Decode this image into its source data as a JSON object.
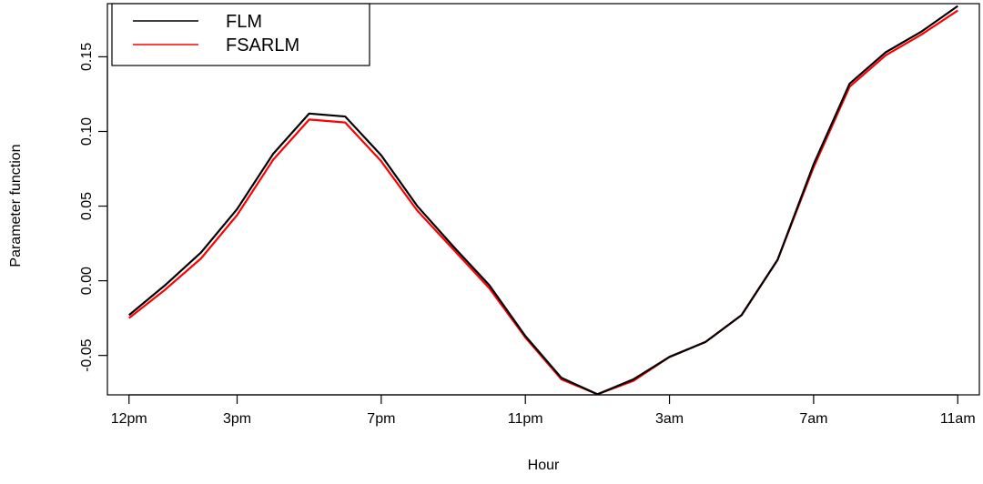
{
  "chart_data": {
    "type": "line",
    "title": "",
    "xlabel": "Hour",
    "ylabel": "Parameter function",
    "x": [
      12,
      13,
      14,
      15,
      16,
      17,
      18,
      19,
      20,
      21,
      22,
      23,
      24,
      25,
      26,
      27,
      28,
      29,
      30,
      31,
      32,
      33,
      34,
      35
    ],
    "xticks": [
      {
        "value": 12,
        "label": "12pm"
      },
      {
        "value": 15,
        "label": "3pm"
      },
      {
        "value": 19,
        "label": "7pm"
      },
      {
        "value": 23,
        "label": "11pm"
      },
      {
        "value": 27,
        "label": "3am"
      },
      {
        "value": 31,
        "label": "7am"
      },
      {
        "value": 35,
        "label": "11am"
      }
    ],
    "yticks": [
      {
        "value": -0.05,
        "label": "-0.05"
      },
      {
        "value": 0.0,
        "label": "0.00"
      },
      {
        "value": 0.05,
        "label": "0.05"
      },
      {
        "value": 0.1,
        "label": "0.10"
      },
      {
        "value": 0.15,
        "label": "0.15"
      }
    ],
    "xlim": [
      11.4,
      35.6
    ],
    "ylim": [
      -0.0764,
      0.1856
    ],
    "grid": false,
    "legend_position": "top-left",
    "series": [
      {
        "name": "FLM",
        "color": "#000000",
        "values": [
          -0.023,
          -0.003,
          0.019,
          0.048,
          0.085,
          0.112,
          0.11,
          0.084,
          0.05,
          0.023,
          -0.003,
          -0.037,
          -0.065,
          -0.076,
          -0.066,
          -0.051,
          -0.041,
          -0.023,
          0.014,
          0.078,
          0.132,
          0.153,
          0.167,
          0.184
        ]
      },
      {
        "name": "FSARLM",
        "color": "#ff0000",
        "values": [
          -0.025,
          -0.006,
          0.015,
          0.044,
          0.081,
          0.108,
          0.106,
          0.08,
          0.047,
          0.021,
          -0.005,
          -0.038,
          -0.066,
          -0.076,
          -0.067,
          -0.051,
          -0.041,
          -0.023,
          0.014,
          0.076,
          0.13,
          0.151,
          0.165,
          0.181
        ]
      }
    ]
  }
}
